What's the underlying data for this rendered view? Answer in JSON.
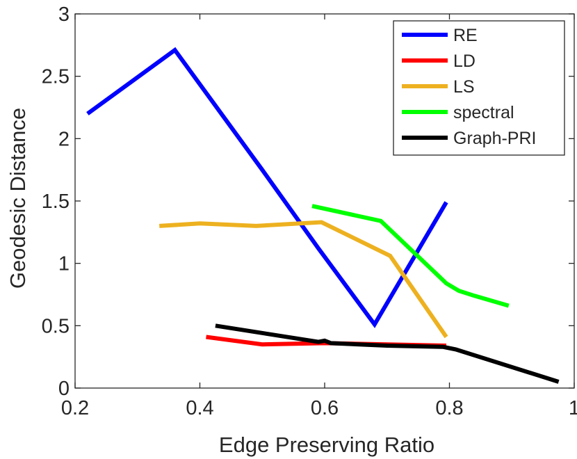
{
  "chart_data": {
    "type": "line",
    "title": "",
    "xlabel": "Edge Preserving Ratio",
    "ylabel": "Geodesic Distance",
    "xlim": [
      0.2,
      1.0
    ],
    "ylim": [
      0,
      3
    ],
    "xticks": [
      0.2,
      0.4,
      0.6,
      0.8,
      1.0
    ],
    "xtick_labels": [
      "0.2",
      "0.4",
      "0.6",
      "0.8",
      "1"
    ],
    "yticks": [
      0,
      0.5,
      1,
      1.5,
      2,
      2.5,
      3
    ],
    "ytick_labels": [
      "0",
      "0.5",
      "1",
      "1.5",
      "2",
      "2.5",
      "3"
    ],
    "grid": false,
    "legend_position": "top-right",
    "series": [
      {
        "name": "RE",
        "color": "#0000ff",
        "x": [
          0.22,
          0.36,
          0.5,
          0.59,
          0.68,
          0.795
        ],
        "y": [
          2.2,
          2.71,
          1.75,
          1.12,
          0.51,
          1.49
        ]
      },
      {
        "name": "LD",
        "color": "#ff0000",
        "x": [
          0.41,
          0.5,
          0.6,
          0.7,
          0.795
        ],
        "y": [
          0.41,
          0.35,
          0.36,
          0.35,
          0.34
        ]
      },
      {
        "name": "LS",
        "color": "#edb120",
        "x": [
          0.335,
          0.4,
          0.49,
          0.595,
          0.705,
          0.795
        ],
        "y": [
          1.3,
          1.32,
          1.3,
          1.33,
          1.06,
          0.41
        ]
      },
      {
        "name": "spectral",
        "color": "#00ff00",
        "x": [
          0.58,
          0.69,
          0.795,
          0.815,
          0.84,
          0.895
        ],
        "y": [
          1.46,
          1.34,
          0.84,
          0.78,
          0.74,
          0.66
        ]
      },
      {
        "name": "Graph-PRI",
        "color": "#000000",
        "x": [
          0.425,
          0.59,
          0.6,
          0.61,
          0.7,
          0.79,
          0.81,
          0.975
        ],
        "y": [
          0.5,
          0.37,
          0.38,
          0.36,
          0.34,
          0.33,
          0.31,
          0.05
        ]
      }
    ]
  }
}
